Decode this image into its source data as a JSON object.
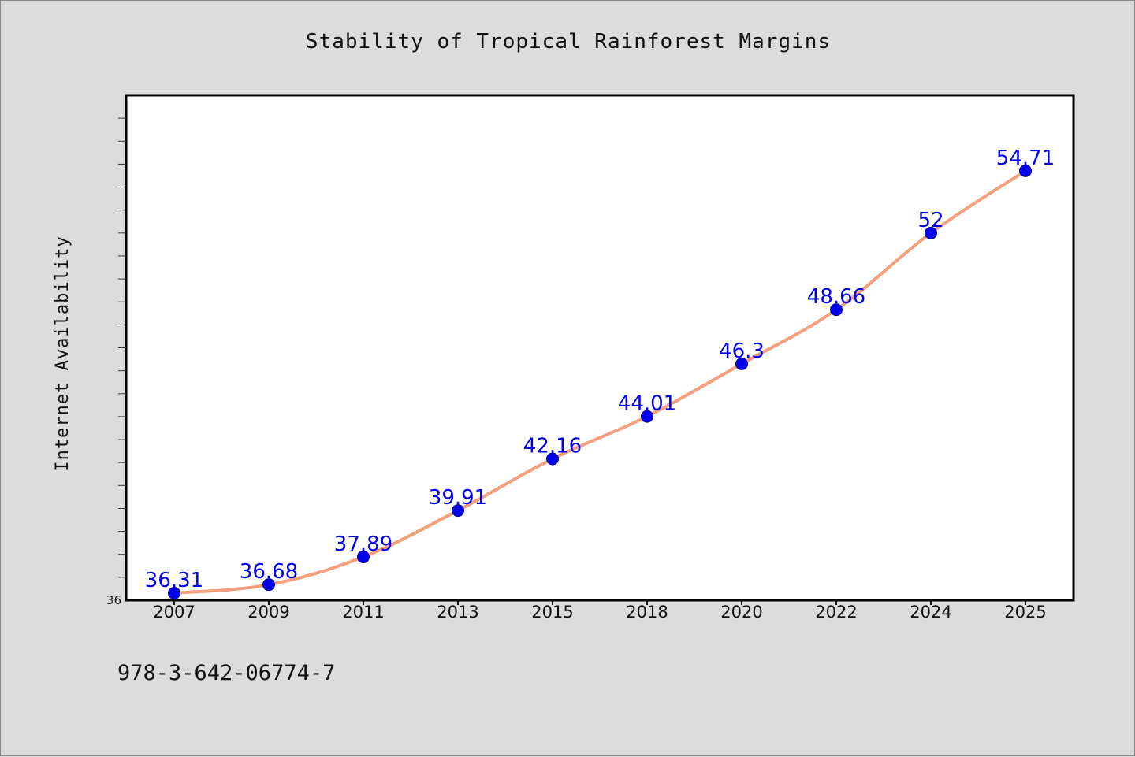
{
  "chart_data": {
    "type": "line",
    "title": "Stability of Tropical Rainforest Margins",
    "xlabel": "",
    "ylabel": "Internet Availability",
    "categories": [
      "2007",
      "2009",
      "2011",
      "2013",
      "2015",
      "2018",
      "2020",
      "2022",
      "2024",
      "2025"
    ],
    "series": [
      {
        "values": [
          36.31,
          36.68,
          37.89,
          39.91,
          42.16,
          44.01,
          46.3,
          48.66,
          52,
          54.71
        ],
        "line_color": "#f4a07c",
        "marker_color": "#0000ee"
      }
    ],
    "data_label_color": "#0000ee",
    "ylim": [
      36,
      58
    ],
    "yticks_labeled": [
      "36"
    ],
    "grid": false,
    "legend": "none"
  },
  "footer": {
    "identifier": "978-3-642-06774-7"
  }
}
